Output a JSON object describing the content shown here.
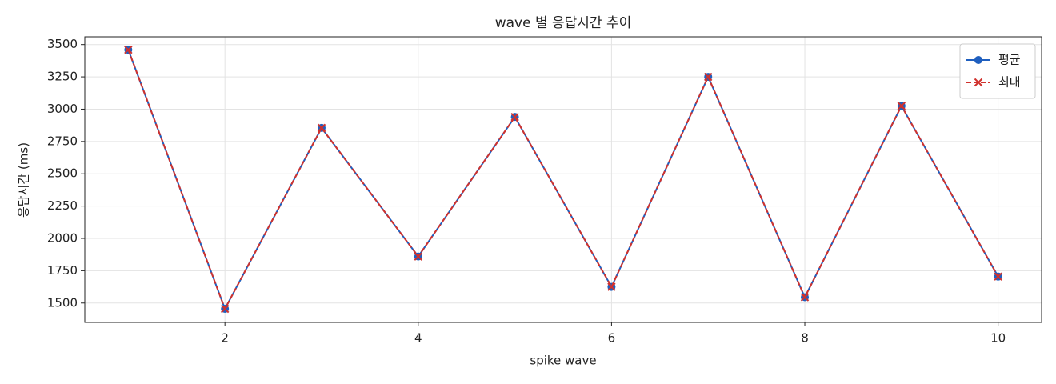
{
  "chart_data": {
    "type": "line",
    "title": "wave 별 응답시간 추이",
    "xlabel": "spike wave",
    "ylabel": "응답시간 (ms)",
    "x": [
      1,
      2,
      3,
      4,
      5,
      6,
      7,
      8,
      9,
      10
    ],
    "series": [
      {
        "name": "평균",
        "color": "#1f5fbf",
        "marker": "o",
        "linestyle": "solid",
        "values": [
          3460,
          1455,
          2855,
          1860,
          2940,
          1625,
          3250,
          1545,
          3025,
          1705
        ]
      },
      {
        "name": "최대",
        "color": "#d0312d",
        "marker": "x",
        "linestyle": "dashed",
        "values": [
          3460,
          1455,
          2855,
          1860,
          2940,
          1625,
          3250,
          1545,
          3025,
          1705
        ]
      }
    ],
    "xlim": [
      0.55,
      10.45
    ],
    "xticks": [
      2,
      4,
      6,
      8,
      10
    ],
    "ylim": [
      1350,
      3560
    ],
    "yticks": [
      1500,
      1750,
      2000,
      2250,
      2500,
      2750,
      3000,
      3250,
      3500
    ],
    "grid": true,
    "legend": "upper right"
  }
}
